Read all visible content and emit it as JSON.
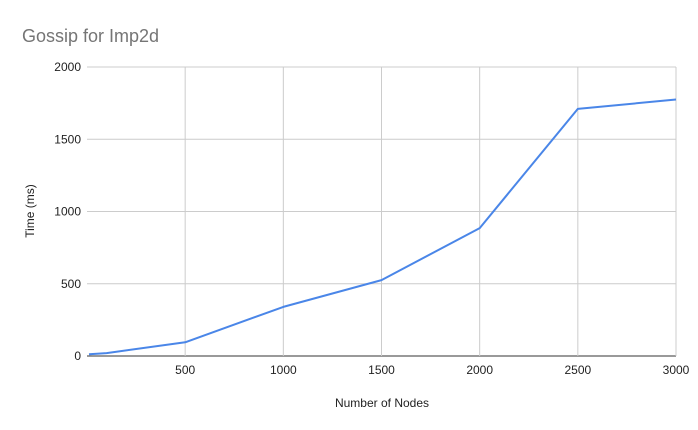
{
  "chart_data": {
    "type": "line",
    "title": "Gossip for Imp2d",
    "xlabel": "Number of Nodes",
    "ylabel": "Time (ms)",
    "xlim": [
      0,
      3000
    ],
    "ylim": [
      0,
      2000
    ],
    "x_ticks": [
      500,
      1000,
      1500,
      2000,
      2500,
      3000
    ],
    "y_ticks": [
      0,
      500,
      1000,
      1500,
      2000
    ],
    "grid": true,
    "legend": "none",
    "series": [
      {
        "color": "#4a86e8",
        "x": [
          10,
          100,
          500,
          1000,
          1500,
          2000,
          2500,
          3000
        ],
        "y": [
          12,
          20,
          95,
          340,
          525,
          885,
          1710,
          1775
        ]
      }
    ]
  }
}
